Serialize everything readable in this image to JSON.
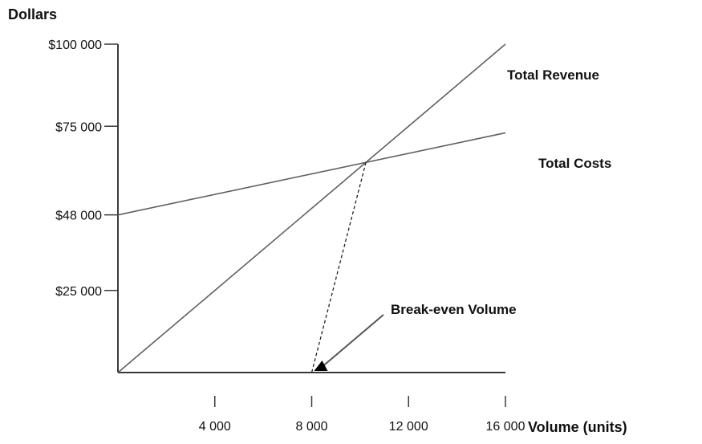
{
  "chart_data": {
    "type": "line",
    "title": "",
    "xlabel": "Volume (units)",
    "ylabel": "Dollars",
    "xlim": [
      0,
      16000
    ],
    "x_ticks": [
      {
        "value": 4000,
        "label": "4 000"
      },
      {
        "value": 8000,
        "label": "8 000"
      },
      {
        "value": 12000,
        "label": "12 000"
      },
      {
        "value": 16000,
        "label": "16 000"
      }
    ],
    "y_ticks": [
      {
        "value": 25000,
        "label": "$25 000"
      },
      {
        "value": 48000,
        "label": "$48 000"
      },
      {
        "value": 75000,
        "label": "$75 000"
      },
      {
        "value": 100000,
        "label": "$100 000"
      }
    ],
    "series": [
      {
        "name": "Total Revenue",
        "points": [
          {
            "x": 0,
            "y": 0
          },
          {
            "x": 16000,
            "y": 100000
          }
        ]
      },
      {
        "name": "Total Costs",
        "points": [
          {
            "x": 0,
            "y": 48000
          },
          {
            "x": 16000,
            "y": 73000
          }
        ]
      }
    ],
    "annotation": {
      "text": "Break-even Volume",
      "x": 8000
    },
    "grid": false
  }
}
